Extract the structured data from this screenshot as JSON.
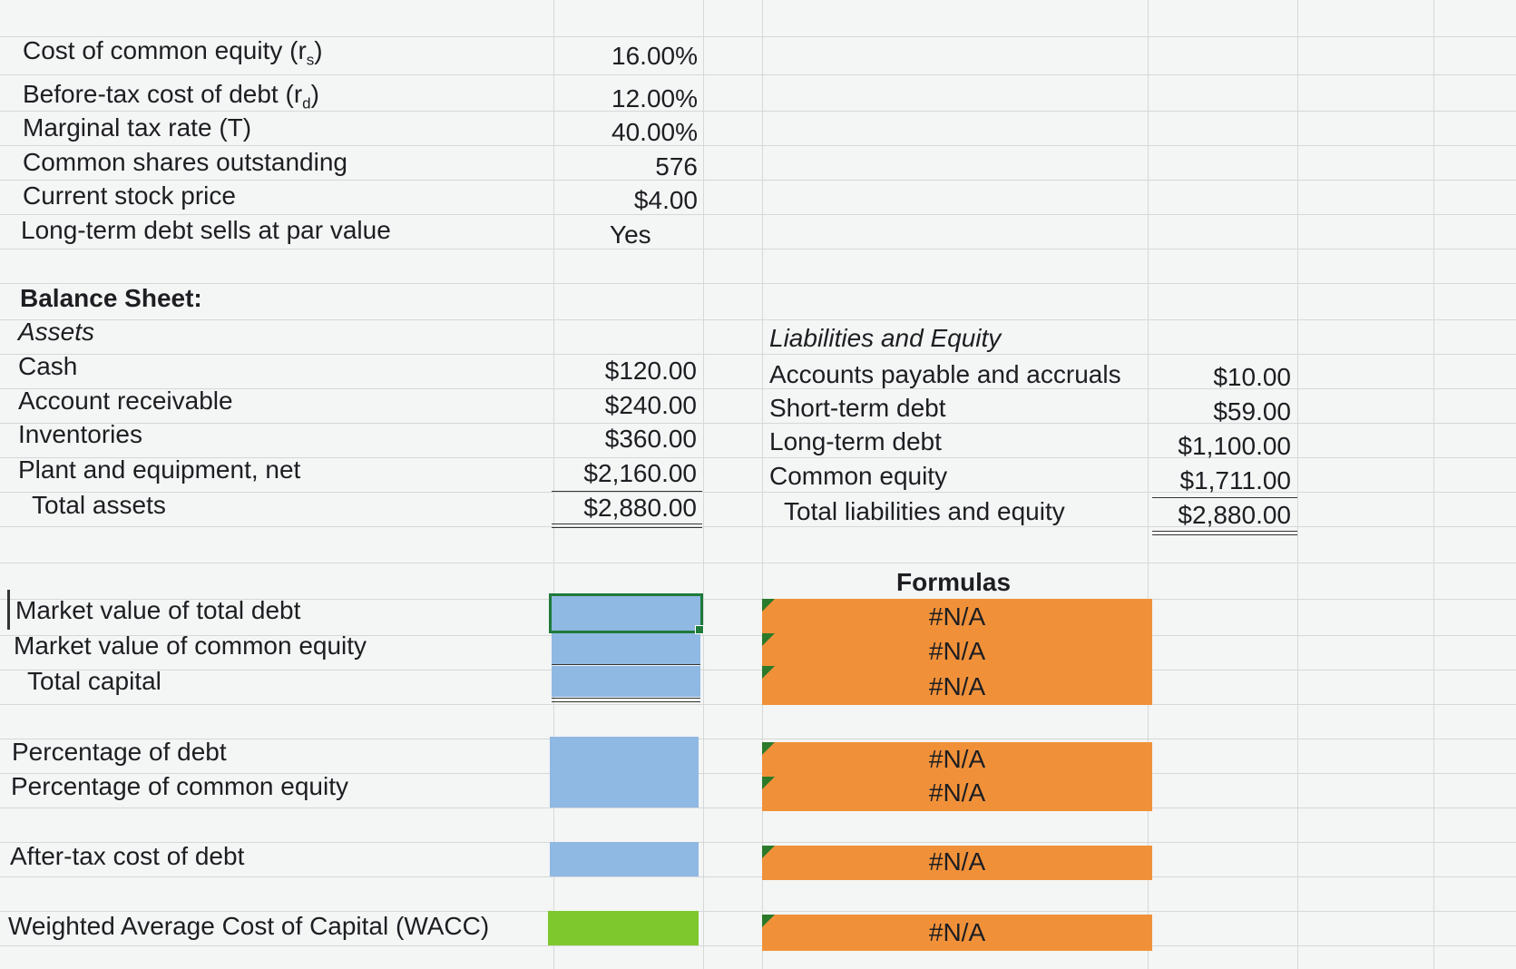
{
  "inputs": [
    {
      "label": "Cost of common equity (r",
      "sub": "s",
      "tail": ")",
      "value": "16.00%"
    },
    {
      "label": "Before-tax cost of debt (r",
      "sub": "d",
      "tail": ")",
      "value": "12.00%"
    },
    {
      "label": "Marginal tax rate (T)",
      "value": "40.00%"
    },
    {
      "label": "Common shares outstanding",
      "value": "576"
    },
    {
      "label": "Current stock price",
      "value": "$4.00"
    },
    {
      "label": "Long-term debt sells at par value",
      "value": "Yes"
    }
  ],
  "balance_sheet": {
    "title": "Balance Sheet:",
    "assets_heading": "Assets",
    "assets": [
      {
        "label": "Cash",
        "value": "$120.00"
      },
      {
        "label": "Account receivable",
        "value": "$240.00"
      },
      {
        "label": "Inventories",
        "value": "$360.00"
      },
      {
        "label": "Plant and equipment, net",
        "value": "$2,160.00"
      }
    ],
    "total_assets": {
      "label": "Total assets",
      "value": "$2,880.00"
    },
    "liab_heading": "Liabilities and Equity",
    "liabilities": [
      {
        "label": "Accounts payable and accruals",
        "value": "$10.00"
      },
      {
        "label": "Short-term debt",
        "value": "$59.00"
      },
      {
        "label": "Long-term debt",
        "value": "$1,100.00"
      },
      {
        "label": "Common equity",
        "value": "$1,711.00"
      }
    ],
    "total_liab": {
      "label": "Total liabilities and equity",
      "value": "$2,880.00"
    }
  },
  "calc": {
    "formulas_heading": "Formulas",
    "rows": [
      {
        "label": "Market value of total debt",
        "result": "#N/A"
      },
      {
        "label": "Market value of common equity",
        "result": "#N/A"
      },
      {
        "label": "Total capital",
        "result": "#N/A"
      },
      {
        "label": "Percentage of debt",
        "result": "#N/A"
      },
      {
        "label": "Percentage of common equity",
        "result": "#N/A"
      },
      {
        "label": "After-tax cost of debt",
        "result": "#N/A"
      },
      {
        "label": "Weighted Average Cost of Capital (WACC)",
        "result": "#N/A"
      }
    ]
  },
  "colors": {
    "input_cell": "#8fb8e3",
    "formula_cell": "#f0913a",
    "wacc_cell": "#7ec82e",
    "selection": "#1f7a3a"
  }
}
